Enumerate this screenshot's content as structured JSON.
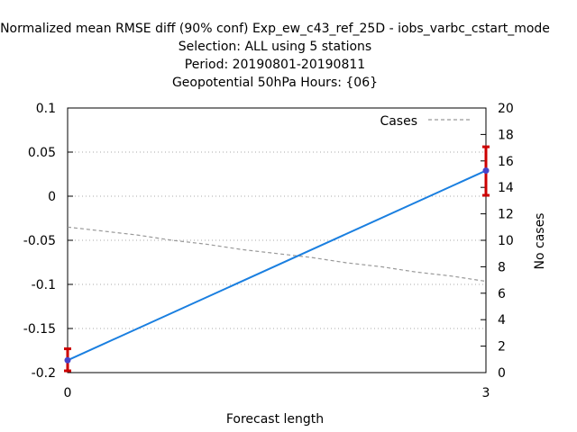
{
  "chart_data": {
    "type": "line",
    "title_lines": [
      "Normalized mean RMSE diff (90% conf) Exp_ew_c43_ref_25D - iobs_varbc_cstart_mode",
      "Selection: ALL using      5 stations",
      "Period: 20190801-20190811",
      "Geopotential 50hPa   Hours: {06}"
    ],
    "xlabel": "Forecast length",
    "ylabel": "",
    "y2label": "No cases",
    "x_ticks": [
      "0",
      "3"
    ],
    "xlim": [
      0,
      3
    ],
    "ylim": [
      -0.2,
      0.1
    ],
    "y_ticks": [
      "0.1",
      "0.05",
      "0",
      "-0.05",
      "-0.1",
      "-0.15",
      "-0.2"
    ],
    "y2lim": [
      0,
      20
    ],
    "y2_ticks": [
      "20",
      "18",
      "16",
      "14",
      "12",
      "10",
      "8",
      "6",
      "4",
      "2",
      "0"
    ],
    "grid": true,
    "legend_position": "top-right",
    "series": [
      {
        "type": "line",
        "axis": "left",
        "color": "#1a7fe0",
        "x": [
          0,
          3
        ],
        "y": [
          -0.186,
          0.029
        ],
        "err_low": [
          -0.198,
          0.001
        ],
        "err_high": [
          -0.173,
          0.056
        ],
        "error_color": "#cc0000",
        "marker_color": "#4444cc"
      },
      {
        "name": "Cases",
        "type": "line",
        "axis": "right",
        "style": "dashed",
        "color": "#999999",
        "x": [
          0,
          0.25,
          0.5,
          0.75,
          1,
          1.25,
          1.5,
          1.75,
          2,
          2.25,
          2.5,
          2.75,
          3
        ],
        "y": [
          11,
          10.7,
          10.4,
          10.0,
          9.7,
          9.3,
          9.0,
          8.7,
          8.3,
          8.0,
          7.6,
          7.3,
          6.9
        ]
      }
    ]
  }
}
